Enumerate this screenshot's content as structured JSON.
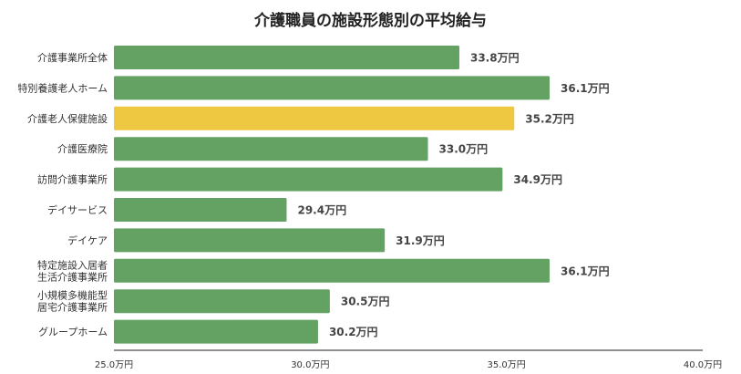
{
  "chart_data": {
    "type": "bar",
    "orientation": "horizontal",
    "title": "介護職員の施設形態別の平均給与",
    "categories": [
      [
        "介護事業所全体"
      ],
      [
        "特別養護老人ホーム"
      ],
      [
        "介護老人保健施設"
      ],
      [
        "介護医療院"
      ],
      [
        "訪問介護事業所"
      ],
      [
        "デイサービス"
      ],
      [
        "デイケア"
      ],
      [
        "特定施設入居者",
        "生活介護事業所"
      ],
      [
        "小規模多機能型",
        "居宅介護事業所"
      ],
      [
        "グループホーム"
      ]
    ],
    "values": [
      33.8,
      36.1,
      35.2,
      33.0,
      34.9,
      29.4,
      31.9,
      36.1,
      30.5,
      30.2
    ],
    "value_labels": [
      "33.8万円",
      "36.1万円",
      "35.2万円",
      "33.0万円",
      "34.9万円",
      "29.4万円",
      "31.9万円",
      "36.1万円",
      "30.5万円",
      "30.2万円"
    ],
    "bar_colors": [
      "#64a264",
      "#64a264",
      "#efc841",
      "#64a264",
      "#64a264",
      "#64a264",
      "#64a264",
      "#64a264",
      "#64a264",
      "#64a264"
    ],
    "xlim": [
      25.0,
      40.0
    ],
    "x_ticks": [
      25.0,
      30.0,
      35.0,
      40.0
    ],
    "x_tick_labels": [
      "25.0万円",
      "30.0万円",
      "35.0万円",
      "40.0万円"
    ],
    "xlabel": "",
    "ylabel": "",
    "grid": false,
    "legend": "none"
  }
}
